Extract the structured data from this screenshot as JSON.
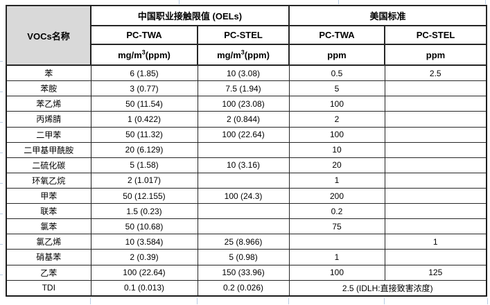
{
  "table": {
    "corner_header": "VOCs名称",
    "group_headers": {
      "china": "中国职业接触限值 (OELs)",
      "us": "美国标准"
    },
    "sub_headers": [
      "PC-TWA",
      "PC-STEL",
      "PC-TWA",
      "PC-STEL"
    ],
    "units": {
      "mg_base": "mg/m",
      "mg_sup": "3",
      "mg_paren": "(ppm)",
      "ppm": "ppm"
    },
    "rows": [
      {
        "name": "苯",
        "cn_twa": "6 (1.85)",
        "cn_stel": "10 (3.08)",
        "us_twa": "0.5",
        "us_stel": "2.5"
      },
      {
        "name": "苯胺",
        "cn_twa": "3 (0.77)",
        "cn_stel": "7.5 (1.94)",
        "us_twa": "5",
        "us_stel": ""
      },
      {
        "name": "苯乙烯",
        "cn_twa": "50 (11.54)",
        "cn_stel": "100 (23.08)",
        "us_twa": "100",
        "us_stel": ""
      },
      {
        "name": "丙烯腈",
        "cn_twa": "1 (0.422)",
        "cn_stel": "2 (0.844)",
        "us_twa": "2",
        "us_stel": ""
      },
      {
        "name": "二甲苯",
        "cn_twa": "50 (11.32)",
        "cn_stel": "100 (22.64)",
        "us_twa": "100",
        "us_stel": ""
      },
      {
        "name": "二甲基甲酰胺",
        "cn_twa": "20 (6.129)",
        "cn_stel": "",
        "us_twa": "10",
        "us_stel": ""
      },
      {
        "name": "二硫化碳",
        "cn_twa": "5 (1.58)",
        "cn_stel": "10 (3.16)",
        "us_twa": "20",
        "us_stel": ""
      },
      {
        "name": "环氧乙烷",
        "cn_twa": "2 (1.017)",
        "cn_stel": "",
        "us_twa": "1",
        "us_stel": ""
      },
      {
        "name": "甲苯",
        "cn_twa": "50 (12.155)",
        "cn_stel": "100 (24.3)",
        "us_twa": "200",
        "us_stel": ""
      },
      {
        "name": "联苯",
        "cn_twa": "1.5 (0.23)",
        "cn_stel": "",
        "us_twa": "0.2",
        "us_stel": ""
      },
      {
        "name": "氯苯",
        "cn_twa": "50 (10.68)",
        "cn_stel": "",
        "us_twa": "75",
        "us_stel": ""
      },
      {
        "name": "氯乙烯",
        "cn_twa": "10 (3.584)",
        "cn_stel": "25 (8.966)",
        "us_twa": "",
        "us_stel": "1"
      },
      {
        "name": "硝基苯",
        "cn_twa": "2 (0.39)",
        "cn_stel": "5 (0.98)",
        "us_twa": "1",
        "us_stel": ""
      },
      {
        "name": "乙苯",
        "cn_twa": "100 (22.64)",
        "cn_stel": "150 (33.96)",
        "us_twa": "100",
        "us_stel": "125"
      },
      {
        "name": "TDI",
        "cn_twa": "0.1 (0.013)",
        "cn_stel": "0.2 (0.026)",
        "us_merged": "2.5 (IDLH:直接致害浓度)"
      }
    ],
    "colors": {
      "header_fill": "#d9d9d9",
      "border": "#262626",
      "gridline_artifact": "#b8cce4"
    }
  }
}
